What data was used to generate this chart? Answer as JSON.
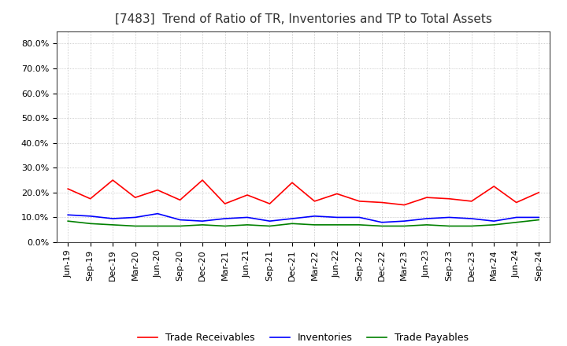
{
  "title": "[7483]  Trend of Ratio of TR, Inventories and TP to Total Assets",
  "x_labels": [
    "Jun-19",
    "Sep-19",
    "Dec-19",
    "Mar-20",
    "Jun-20",
    "Sep-20",
    "Dec-20",
    "Mar-21",
    "Jun-21",
    "Sep-21",
    "Dec-21",
    "Mar-22",
    "Jun-22",
    "Sep-22",
    "Dec-22",
    "Mar-23",
    "Jun-23",
    "Sep-23",
    "Dec-23",
    "Mar-24",
    "Jun-24",
    "Sep-24"
  ],
  "trade_receivables": [
    21.5,
    17.5,
    25.0,
    18.0,
    21.0,
    17.0,
    25.0,
    15.5,
    19.0,
    15.5,
    24.0,
    16.5,
    19.5,
    16.5,
    16.0,
    15.0,
    18.0,
    17.5,
    16.5,
    22.5,
    16.0,
    20.0
  ],
  "inventories": [
    11.0,
    10.5,
    9.5,
    10.0,
    11.5,
    9.0,
    8.5,
    9.5,
    10.0,
    8.5,
    9.5,
    10.5,
    10.0,
    10.0,
    8.0,
    8.5,
    9.5,
    10.0,
    9.5,
    8.5,
    10.0,
    10.0
  ],
  "trade_payables": [
    8.5,
    7.5,
    7.0,
    6.5,
    6.5,
    6.5,
    7.0,
    6.5,
    7.0,
    6.5,
    7.5,
    7.0,
    7.0,
    7.0,
    6.5,
    6.5,
    7.0,
    6.5,
    6.5,
    7.0,
    8.0,
    9.0
  ],
  "tr_color": "#ff0000",
  "inv_color": "#0000ff",
  "tp_color": "#008000",
  "ylim": [
    0,
    85
  ],
  "yticks": [
    0,
    10,
    20,
    30,
    40,
    50,
    60,
    70,
    80
  ],
  "ytick_labels": [
    "0.0%",
    "10.0%",
    "20.0%",
    "30.0%",
    "40.0%",
    "50.0%",
    "60.0%",
    "70.0%",
    "80.0%"
  ],
  "legend_labels": [
    "Trade Receivables",
    "Inventories",
    "Trade Payables"
  ],
  "background_color": "#ffffff",
  "grid_color": "#999999",
  "title_fontsize": 11,
  "tick_fontsize": 8,
  "legend_fontsize": 9
}
